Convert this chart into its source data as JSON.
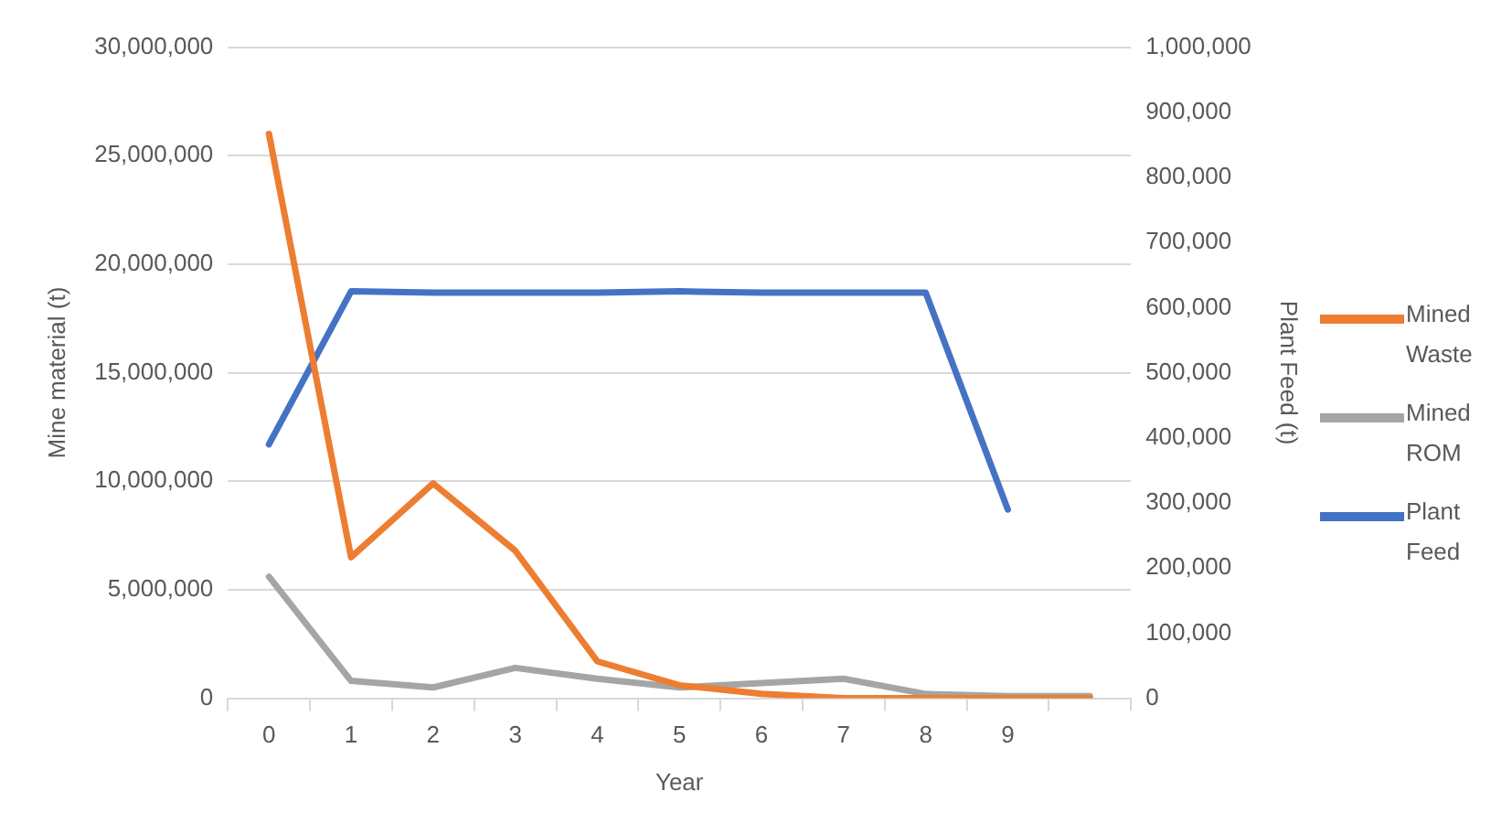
{
  "chart_data": {
    "type": "line",
    "xlabel": "Year",
    "ylabel": "Mine material (t)",
    "y2label": "Plant Feed (t)",
    "categories": [
      "0",
      "1",
      "2",
      "3",
      "4",
      "5",
      "6",
      "7",
      "8",
      "9",
      null
    ],
    "series": [
      {
        "name": "Mined Waste",
        "color": "#ed7d31",
        "values": [
          26000000,
          6500000,
          9900000,
          6800000,
          1700000,
          600000,
          200000,
          0,
          0,
          0,
          0
        ]
      },
      {
        "name": "Mined ROM",
        "color": "#a5a5a5",
        "values": [
          5600000,
          800000,
          500000,
          1400000,
          900000,
          500000,
          700000,
          900000,
          200000,
          100000,
          100000
        ]
      },
      {
        "name": "Plant Feed",
        "color": "#4472c4",
        "axis": "y2",
        "values": [
          390000,
          625000,
          623000,
          623000,
          623000,
          625000,
          623000,
          623000,
          623000,
          290000,
          null
        ]
      }
    ],
    "ylim": [
      0,
      30000000
    ],
    "yticks": [
      {
        "value": 0,
        "label": "0"
      },
      {
        "value": 5000000,
        "label": "5,000,000"
      },
      {
        "value": 10000000,
        "label": "10,000,000"
      },
      {
        "value": 15000000,
        "label": "15,000,000"
      },
      {
        "value": 20000000,
        "label": "20,000,000"
      },
      {
        "value": 25000000,
        "label": "25,000,000"
      },
      {
        "value": 30000000,
        "label": "30,000,000"
      }
    ],
    "y2lim": [
      0,
      1000000
    ],
    "y2ticks": [
      {
        "value": 0,
        "label": "0"
      },
      {
        "value": 100000,
        "label": "100,000"
      },
      {
        "value": 200000,
        "label": "200,000"
      },
      {
        "value": 300000,
        "label": "300,000"
      },
      {
        "value": 400000,
        "label": "400,000"
      },
      {
        "value": 500000,
        "label": "500,000"
      },
      {
        "value": 600000,
        "label": "600,000"
      },
      {
        "value": 700000,
        "label": "700,000"
      },
      {
        "value": 800000,
        "label": "800,000"
      },
      {
        "value": 900000,
        "label": "900,000"
      },
      {
        "value": 1000000,
        "label": "1,000,000"
      }
    ],
    "grid": "y",
    "legend": "right",
    "marker": "none",
    "line_style": "solid"
  }
}
